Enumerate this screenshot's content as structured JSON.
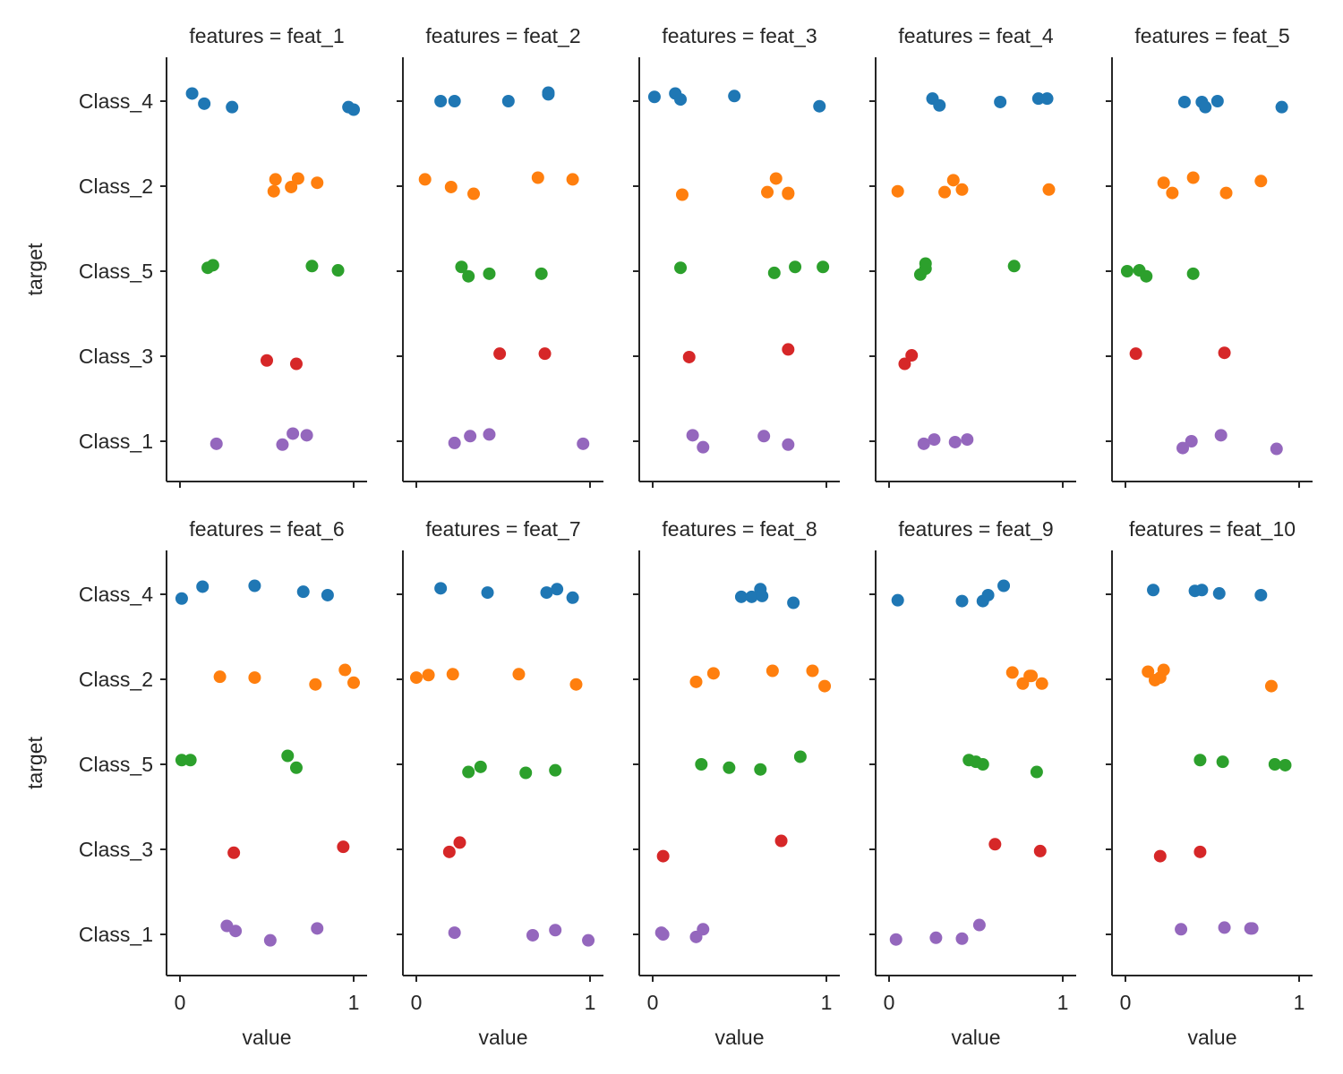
{
  "chart_data": {
    "type": "scatter",
    "subtype": "strip-plot-facet-grid",
    "title": "",
    "facet_variable": "features",
    "facet_title_template": "features = {}",
    "xlabel": "value",
    "ylabel": "target",
    "xlim": [
      -0.08,
      1.08
    ],
    "xticks": [
      0,
      1
    ],
    "xtick_labels": [
      "0",
      "1"
    ],
    "categories": [
      "Class_4",
      "Class_2",
      "Class_5",
      "Class_3",
      "Class_1"
    ],
    "category_colors": {
      "Class_4": "#1f77b4",
      "Class_2": "#ff7f0e",
      "Class_5": "#2ca02c",
      "Class_3": "#d62728",
      "Class_1": "#9467bd"
    },
    "grid": false,
    "legend": "none",
    "layout": {
      "rows": 2,
      "cols": 5
    },
    "jitter_note": "points are vertically jittered within each category band; jitter given in category units",
    "panels": [
      {
        "feature": "feat_1",
        "title": "features = feat_1",
        "points": {
          "Class_4": {
            "values": [
              0.07,
              0.14,
              0.3,
              0.97,
              1.0
            ],
            "jitter": [
              -0.09,
              0.03,
              0.07,
              0.07,
              0.1
            ]
          },
          "Class_2": {
            "values": [
              0.55,
              0.54,
              0.64,
              0.68,
              0.79
            ],
            "jitter": [
              -0.08,
              0.06,
              0.01,
              -0.09,
              -0.04
            ]
          },
          "Class_5": {
            "values": [
              0.16,
              0.19,
              0.76,
              0.91
            ],
            "jitter": [
              -0.04,
              -0.07,
              -0.06,
              -0.01
            ]
          },
          "Class_3": {
            "values": [
              0.5,
              0.67
            ],
            "jitter": [
              0.05,
              0.09
            ]
          },
          "Class_1": {
            "values": [
              0.21,
              0.59,
              0.65,
              0.73
            ],
            "jitter": [
              0.03,
              0.04,
              -0.09,
              -0.07
            ]
          }
        }
      },
      {
        "feature": "feat_2",
        "title": "features = feat_2",
        "points": {
          "Class_4": {
            "values": [
              0.14,
              0.22,
              0.53,
              0.76,
              0.76
            ],
            "jitter": [
              0.0,
              0.0,
              0.0,
              -0.08,
              -0.1
            ]
          },
          "Class_2": {
            "values": [
              0.05,
              0.2,
              0.33,
              0.7,
              0.9
            ],
            "jitter": [
              -0.08,
              0.01,
              0.09,
              -0.1,
              -0.08
            ]
          },
          "Class_5": {
            "values": [
              0.26,
              0.3,
              0.42,
              0.72
            ],
            "jitter": [
              -0.05,
              0.06,
              0.03,
              0.03
            ]
          },
          "Class_3": {
            "values": [
              0.48,
              0.74
            ],
            "jitter": [
              -0.03,
              -0.03
            ]
          },
          "Class_1": {
            "values": [
              0.22,
              0.31,
              0.42,
              0.96
            ],
            "jitter": [
              0.02,
              -0.06,
              -0.08,
              0.03
            ]
          }
        }
      },
      {
        "feature": "feat_3",
        "title": "features = feat_3",
        "points": {
          "Class_4": {
            "values": [
              0.01,
              0.13,
              0.16,
              0.47,
              0.96
            ],
            "jitter": [
              -0.05,
              -0.09,
              -0.02,
              -0.06,
              0.06
            ]
          },
          "Class_2": {
            "values": [
              0.17,
              0.66,
              0.71,
              0.78,
              0.78
            ],
            "jitter": [
              0.1,
              0.07,
              -0.09,
              0.08,
              0.09
            ]
          },
          "Class_5": {
            "values": [
              0.16,
              0.7,
              0.82,
              0.98
            ],
            "jitter": [
              -0.04,
              0.02,
              -0.05,
              -0.05
            ]
          },
          "Class_3": {
            "values": [
              0.21,
              0.78
            ],
            "jitter": [
              0.01,
              -0.08
            ]
          },
          "Class_1": {
            "values": [
              0.23,
              0.29,
              0.64,
              0.78
            ],
            "jitter": [
              -0.07,
              0.07,
              -0.06,
              0.04
            ]
          }
        }
      },
      {
        "feature": "feat_4",
        "title": "features = feat_4",
        "points": {
          "Class_4": {
            "values": [
              0.25,
              0.29,
              0.64,
              0.86,
              0.91
            ],
            "jitter": [
              -0.03,
              0.05,
              0.01,
              -0.03,
              -0.03
            ]
          },
          "Class_2": {
            "values": [
              0.05,
              0.32,
              0.37,
              0.42,
              0.92
            ],
            "jitter": [
              0.06,
              0.07,
              -0.07,
              0.04,
              0.04
            ]
          },
          "Class_5": {
            "values": [
              0.18,
              0.21,
              0.21,
              0.72
            ],
            "jitter": [
              0.04,
              -0.09,
              -0.03,
              -0.06
            ]
          },
          "Class_3": {
            "values": [
              0.09,
              0.13
            ],
            "jitter": [
              0.09,
              -0.01
            ]
          },
          "Class_1": {
            "values": [
              0.2,
              0.26,
              0.38,
              0.45
            ],
            "jitter": [
              0.03,
              -0.02,
              0.01,
              -0.02
            ]
          }
        }
      },
      {
        "feature": "feat_5",
        "title": "features = feat_5",
        "points": {
          "Class_4": {
            "values": [
              0.34,
              0.44,
              0.46,
              0.53,
              0.9
            ],
            "jitter": [
              0.01,
              0.01,
              0.07,
              0.0,
              0.07
            ]
          },
          "Class_2": {
            "values": [
              0.22,
              0.27,
              0.39,
              0.58,
              0.78
            ],
            "jitter": [
              -0.04,
              0.08,
              -0.1,
              0.08,
              -0.06
            ]
          },
          "Class_5": {
            "values": [
              0.01,
              0.08,
              0.12,
              0.39
            ],
            "jitter": [
              0.0,
              -0.01,
              0.06,
              0.03
            ]
          },
          "Class_3": {
            "values": [
              0.06,
              0.57
            ],
            "jitter": [
              -0.03,
              -0.04
            ]
          },
          "Class_1": {
            "values": [
              0.33,
              0.38,
              0.55,
              0.87
            ],
            "jitter": [
              0.08,
              0.0,
              -0.07,
              0.09
            ]
          }
        }
      },
      {
        "feature": "feat_6",
        "title": "features = feat_6",
        "points": {
          "Class_4": {
            "values": [
              0.01,
              0.13,
              0.43,
              0.71,
              0.85
            ],
            "jitter": [
              0.05,
              -0.09,
              -0.1,
              -0.03,
              0.01
            ]
          },
          "Class_2": {
            "values": [
              0.23,
              0.43,
              0.78,
              0.95,
              1.0
            ],
            "jitter": [
              -0.03,
              -0.02,
              0.06,
              -0.11,
              0.04
            ]
          },
          "Class_5": {
            "values": [
              0.01,
              0.06,
              0.62,
              0.67
            ],
            "jitter": [
              -0.05,
              -0.05,
              -0.1,
              0.04
            ]
          },
          "Class_3": {
            "values": [
              0.31,
              0.94
            ],
            "jitter": [
              0.04,
              -0.03
            ]
          },
          "Class_1": {
            "values": [
              0.27,
              0.32,
              0.52,
              0.79
            ],
            "jitter": [
              -0.1,
              -0.04,
              0.07,
              -0.07
            ]
          }
        }
      },
      {
        "feature": "feat_7",
        "title": "features = feat_7",
        "points": {
          "Class_4": {
            "values": [
              0.14,
              0.41,
              0.75,
              0.81,
              0.9
            ],
            "jitter": [
              -0.07,
              -0.02,
              -0.02,
              -0.06,
              0.04
            ]
          },
          "Class_2": {
            "values": [
              0.0,
              0.07,
              0.21,
              0.59,
              0.92
            ],
            "jitter": [
              -0.02,
              -0.05,
              -0.06,
              -0.06,
              0.06
            ]
          },
          "Class_5": {
            "values": [
              0.3,
              0.37,
              0.63,
              0.8
            ],
            "jitter": [
              0.09,
              0.03,
              0.1,
              0.07
            ]
          },
          "Class_3": {
            "values": [
              0.19,
              0.25
            ],
            "jitter": [
              0.03,
              -0.08
            ]
          },
          "Class_1": {
            "values": [
              0.22,
              0.67,
              0.8,
              0.99
            ],
            "jitter": [
              -0.02,
              0.01,
              -0.05,
              0.07
            ]
          }
        }
      },
      {
        "feature": "feat_8",
        "title": "features = feat_8",
        "points": {
          "Class_4": {
            "values": [
              0.51,
              0.57,
              0.62,
              0.63,
              0.81
            ],
            "jitter": [
              0.03,
              0.03,
              -0.06,
              0.02,
              0.1
            ]
          },
          "Class_2": {
            "values": [
              0.25,
              0.35,
              0.69,
              0.92,
              0.99
            ],
            "jitter": [
              0.03,
              -0.07,
              -0.1,
              -0.1,
              0.08
            ]
          },
          "Class_5": {
            "values": [
              0.28,
              0.44,
              0.62,
              0.85
            ],
            "jitter": [
              0.0,
              0.04,
              0.06,
              -0.09
            ]
          },
          "Class_3": {
            "values": [
              0.06,
              0.74
            ],
            "jitter": [
              0.08,
              -0.1
            ]
          },
          "Class_1": {
            "values": [
              0.05,
              0.06,
              0.25,
              0.29
            ],
            "jitter": [
              -0.02,
              0.0,
              0.03,
              -0.06
            ]
          }
        }
      },
      {
        "feature": "feat_9",
        "title": "features = feat_9",
        "points": {
          "Class_4": {
            "values": [
              0.05,
              0.42,
              0.54,
              0.57,
              0.66
            ],
            "jitter": [
              0.07,
              0.08,
              0.08,
              0.01,
              -0.1
            ]
          },
          "Class_2": {
            "values": [
              0.71,
              0.77,
              0.81,
              0.82,
              0.88
            ],
            "jitter": [
              -0.08,
              0.05,
              -0.04,
              -0.04,
              0.05
            ]
          },
          "Class_5": {
            "values": [
              0.46,
              0.5,
              0.54,
              0.85
            ],
            "jitter": [
              -0.05,
              -0.03,
              0.0,
              0.09
            ]
          },
          "Class_3": {
            "values": [
              0.61,
              0.87
            ],
            "jitter": [
              -0.06,
              0.02
            ]
          },
          "Class_1": {
            "values": [
              0.04,
              0.27,
              0.42,
              0.52
            ],
            "jitter": [
              0.06,
              0.04,
              0.05,
              -0.11
            ]
          }
        }
      },
      {
        "feature": "feat_10",
        "title": "features = feat_10",
        "points": {
          "Class_4": {
            "values": [
              0.16,
              0.4,
              0.44,
              0.54,
              0.78
            ],
            "jitter": [
              -0.05,
              -0.04,
              -0.05,
              -0.01,
              0.01
            ]
          },
          "Class_2": {
            "values": [
              0.13,
              0.17,
              0.2,
              0.22,
              0.84
            ],
            "jitter": [
              -0.09,
              0.01,
              -0.02,
              -0.11,
              0.08
            ]
          },
          "Class_5": {
            "values": [
              0.43,
              0.56,
              0.86,
              0.92
            ],
            "jitter": [
              -0.05,
              -0.03,
              0.0,
              0.01
            ]
          },
          "Class_3": {
            "values": [
              0.2,
              0.43
            ],
            "jitter": [
              0.08,
              0.03
            ]
          },
          "Class_1": {
            "values": [
              0.32,
              0.57,
              0.72,
              0.73
            ],
            "jitter": [
              -0.06,
              -0.08,
              -0.07,
              -0.07
            ]
          }
        }
      }
    ]
  }
}
